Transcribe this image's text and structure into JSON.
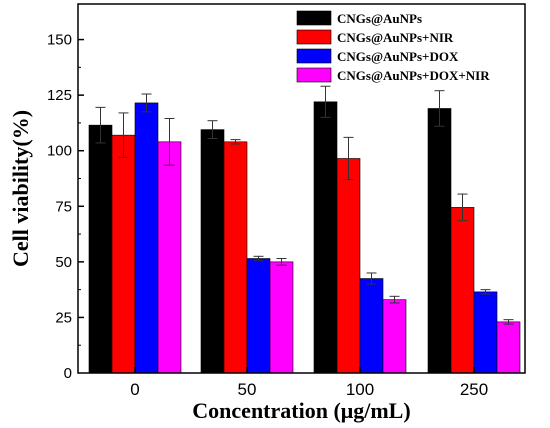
{
  "chart_data": {
    "type": "bar",
    "categories": [
      "0",
      "50",
      "100",
      "250"
    ],
    "xlabel": "Concentration (μg/mL)",
    "ylabel": "Cell viability(%)",
    "ylim": [
      0,
      166
    ],
    "yticks": [
      25,
      50,
      75,
      100,
      125,
      150
    ],
    "grid": false,
    "legend": "top-right",
    "series": [
      {
        "name": "CNGs@AuNPs",
        "color": "#000000",
        "values": [
          111.5,
          109.5,
          122,
          119
        ],
        "errors": [
          8,
          4,
          7,
          8
        ]
      },
      {
        "name": "CNGs@AuNPs+NIR",
        "color": "#ff0000",
        "values": [
          107,
          104,
          96.5,
          74.5
        ],
        "errors": [
          10,
          1,
          9.5,
          6
        ]
      },
      {
        "name": "CNGs@AuNPs+DOX",
        "color": "#0000ff",
        "values": [
          121.5,
          51.5,
          42.5,
          36.5
        ],
        "errors": [
          4,
          1,
          2.5,
          1
        ]
      },
      {
        "name": "CNGs@AuNPs+DOX+NIR",
        "color": "#ff00ff",
        "values": [
          104,
          50,
          33,
          23
        ],
        "errors": [
          10.5,
          1.5,
          1.5,
          1
        ]
      }
    ]
  }
}
